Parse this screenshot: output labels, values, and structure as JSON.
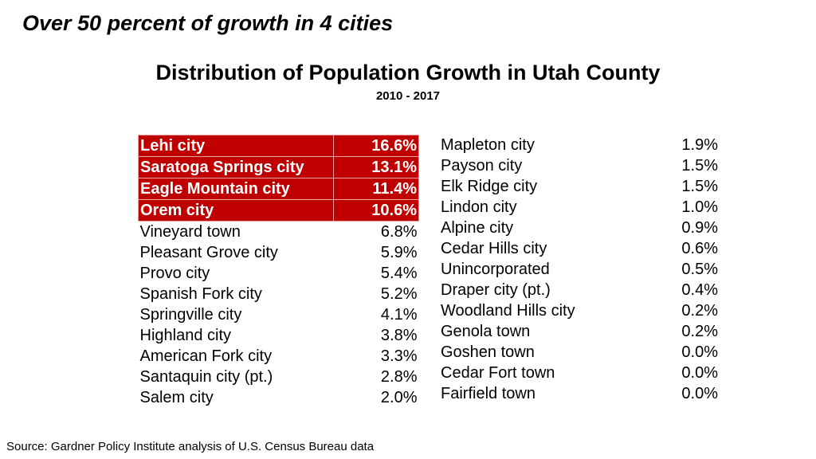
{
  "headline": "Over 50 percent of growth in 4 cities",
  "source": "Source:  Gardner Policy Institute analysis of U.S. Census Bureau data",
  "chart_data": {
    "type": "table",
    "title": "Distribution of Population Growth in Utah County",
    "subtitle": "2010 - 2017",
    "highlight_color": "#c00000",
    "columns": [
      {
        "rows": [
          {
            "name": "Lehi city",
            "value": "16.6%",
            "highlight": true
          },
          {
            "name": "Saratoga Springs city",
            "value": "13.1%",
            "highlight": true
          },
          {
            "name": "Eagle Mountain city",
            "value": "11.4%",
            "highlight": true
          },
          {
            "name": "Orem city",
            "value": "10.6%",
            "highlight": true
          },
          {
            "name": "Vineyard town",
            "value": "6.8%",
            "highlight": false
          },
          {
            "name": "Pleasant Grove city",
            "value": "5.9%",
            "highlight": false
          },
          {
            "name": "Provo city",
            "value": "5.4%",
            "highlight": false
          },
          {
            "name": "Spanish Fork city",
            "value": "5.2%",
            "highlight": false
          },
          {
            "name": "Springville city",
            "value": "4.1%",
            "highlight": false
          },
          {
            "name": "Highland city",
            "value": "3.8%",
            "highlight": false
          },
          {
            "name": "American Fork city",
            "value": "3.3%",
            "highlight": false
          },
          {
            "name": "Santaquin city (pt.)",
            "value": "2.8%",
            "highlight": false
          },
          {
            "name": "Salem city",
            "value": "2.0%",
            "highlight": false
          }
        ]
      },
      {
        "rows": [
          {
            "name": "Mapleton city",
            "value": "1.9%",
            "highlight": false
          },
          {
            "name": "Payson city",
            "value": "1.5%",
            "highlight": false
          },
          {
            "name": "Elk Ridge city",
            "value": "1.5%",
            "highlight": false
          },
          {
            "name": "Lindon city",
            "value": "1.0%",
            "highlight": false
          },
          {
            "name": "Alpine city",
            "value": "0.9%",
            "highlight": false
          },
          {
            "name": "Cedar Hills city",
            "value": "0.6%",
            "highlight": false
          },
          {
            "name": "Unincorporated",
            "value": "0.5%",
            "highlight": false
          },
          {
            "name": "Draper city (pt.)",
            "value": "0.4%",
            "highlight": false
          },
          {
            "name": "Woodland Hills city",
            "value": "0.2%",
            "highlight": false
          },
          {
            "name": "Genola town",
            "value": "0.2%",
            "highlight": false
          },
          {
            "name": "Goshen town",
            "value": "0.0%",
            "highlight": false
          },
          {
            "name": "Cedar Fort town",
            "value": "0.0%",
            "highlight": false
          },
          {
            "name": "Fairfield town",
            "value": "0.0%",
            "highlight": false
          }
        ]
      }
    ]
  }
}
